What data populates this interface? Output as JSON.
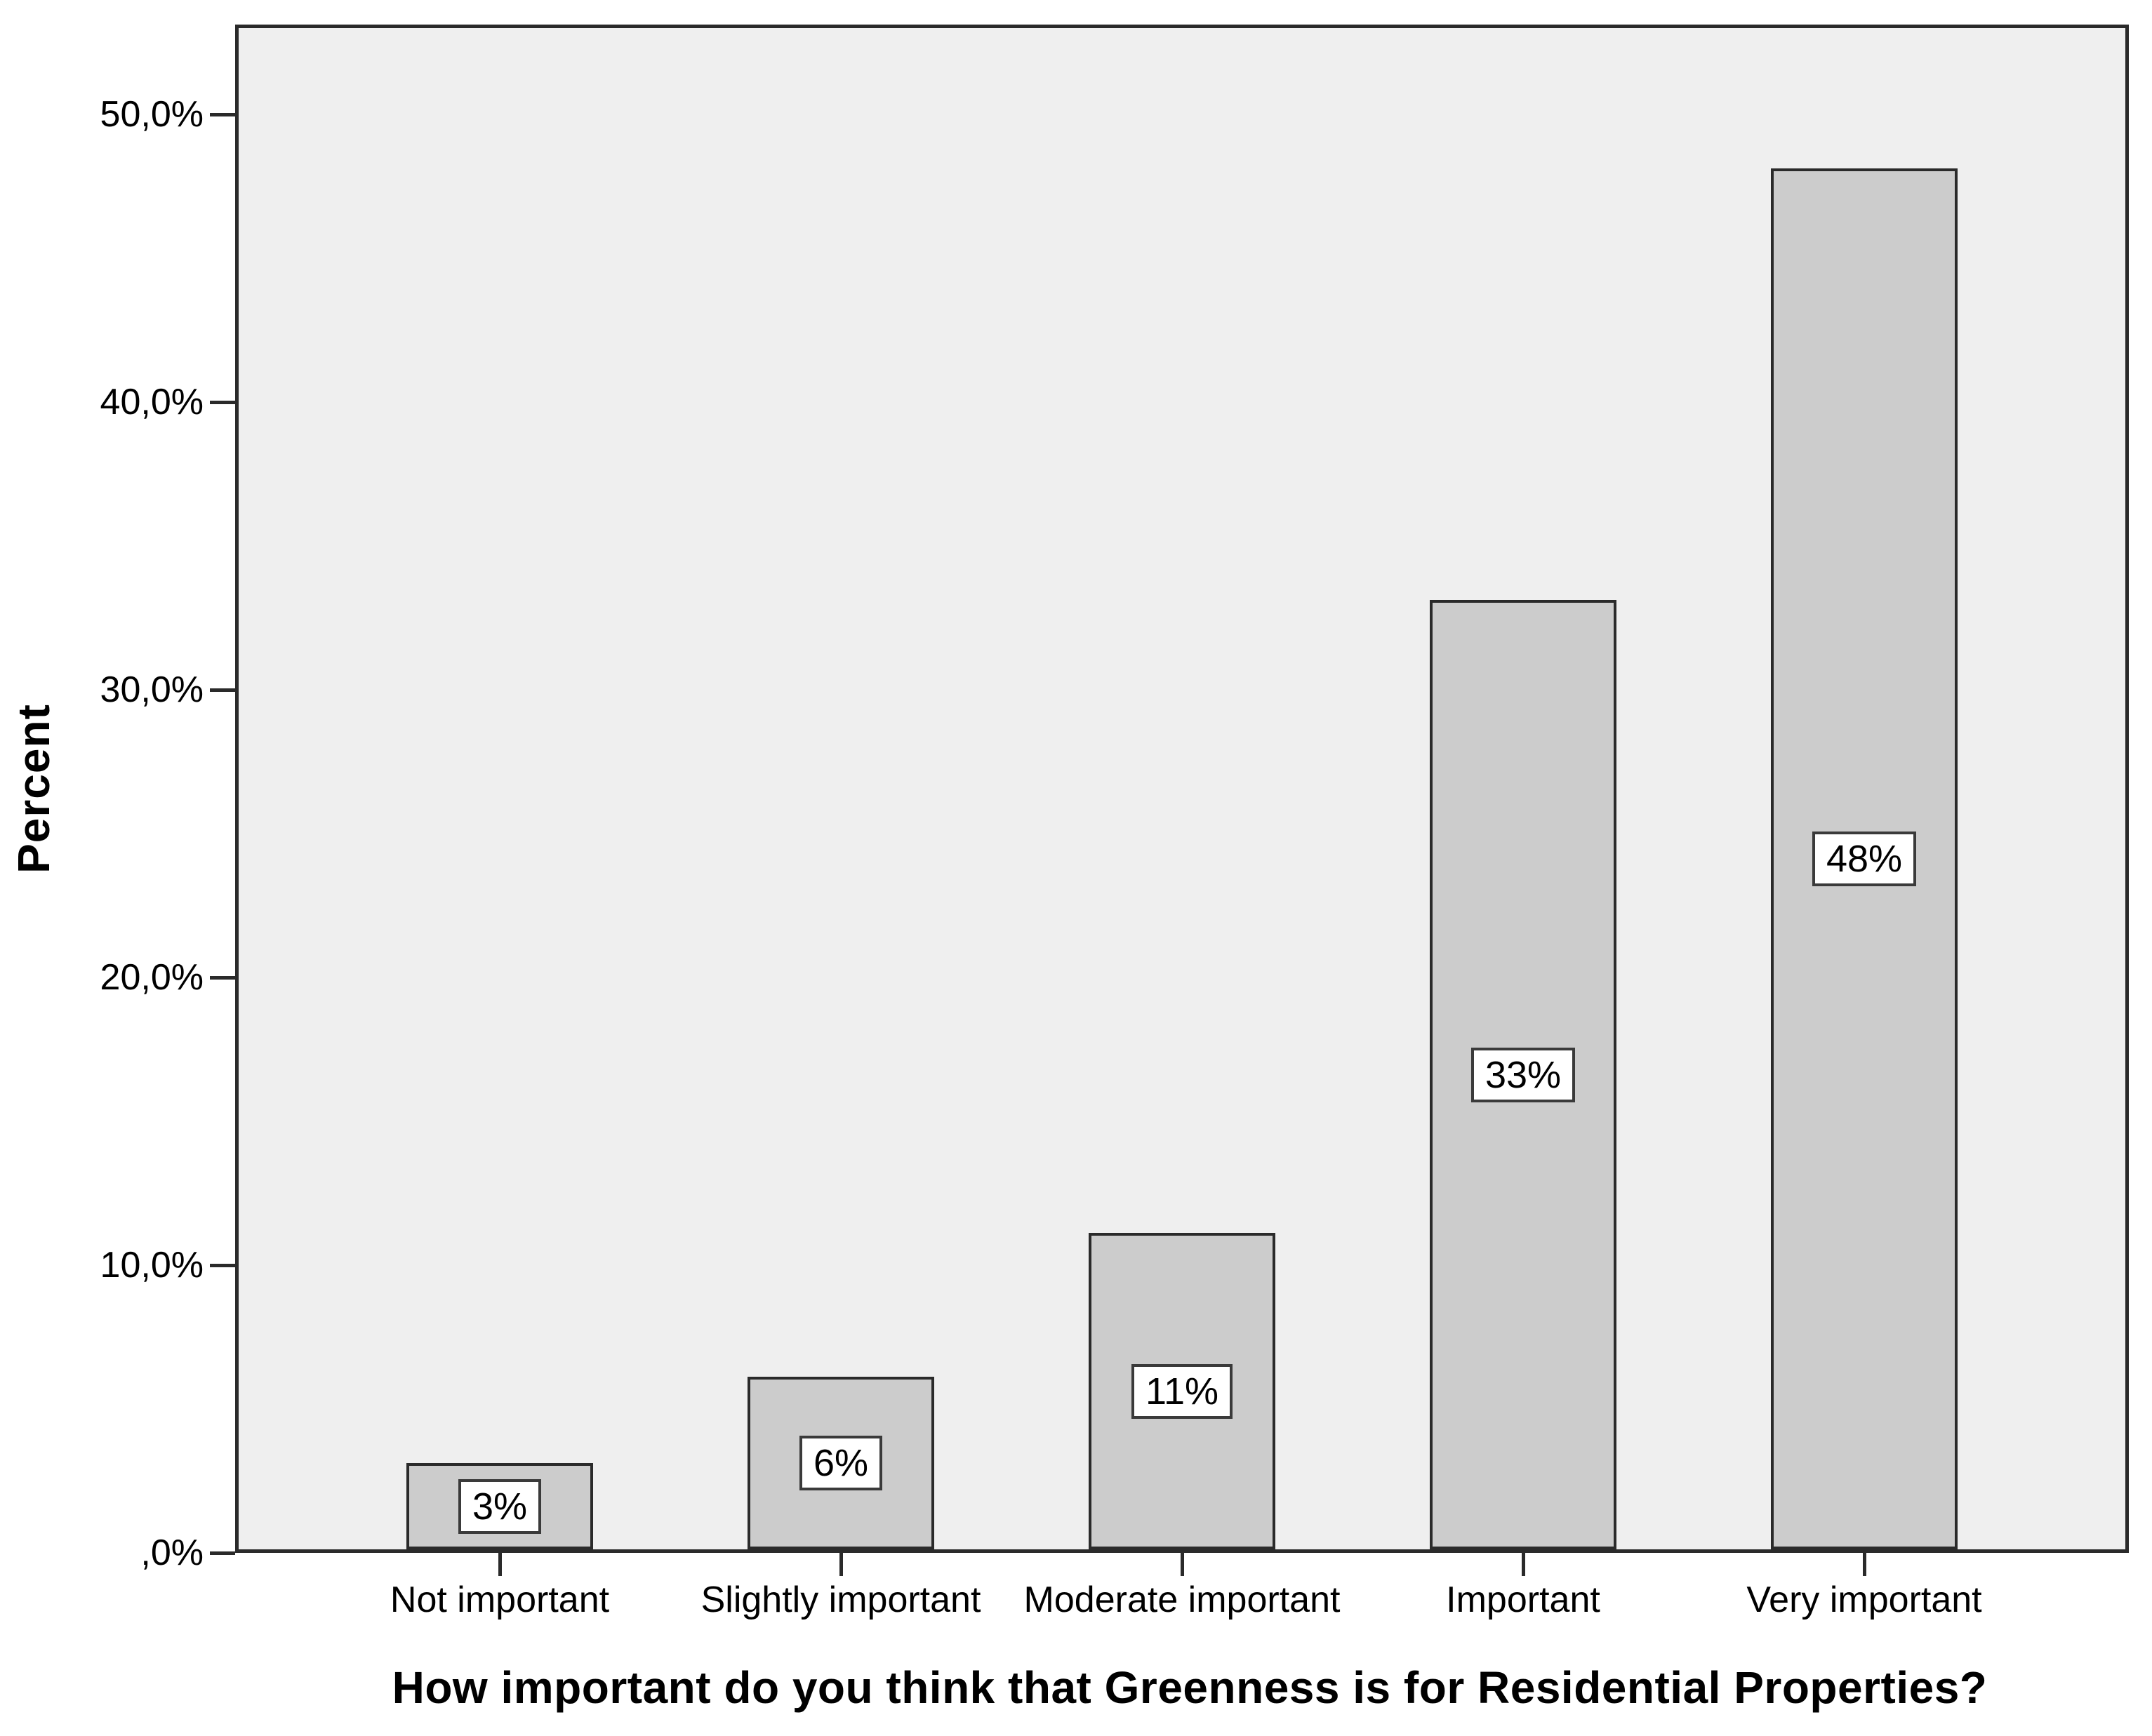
{
  "chart_data": {
    "type": "bar",
    "title": "How important do you think that Greenness is for Residential Properties?",
    "xlabel": "How important do you think that Greenness is for Residential Properties?",
    "ylabel": "Percent",
    "categories": [
      "Not important",
      "Slightly important",
      "Moderate important",
      "Important",
      "Very important"
    ],
    "values": [
      3,
      6,
      11,
      33,
      48
    ],
    "bar_value_labels": [
      "3%",
      "6%",
      "11%",
      "33%",
      "48%"
    ],
    "yticks": [
      {
        "value": 0,
        "label": ",0%"
      },
      {
        "value": 10,
        "label": "10,0%"
      },
      {
        "value": 20,
        "label": "20,0%"
      },
      {
        "value": 30,
        "label": "30,0%"
      },
      {
        "value": 40,
        "label": "40,0%"
      },
      {
        "value": 50,
        "label": "50,0%"
      }
    ],
    "ylim": [
      0,
      53
    ],
    "grid": false,
    "legend": "none"
  },
  "colors": {
    "bar_fill": "#cccccc",
    "bar_border": "#2a2a2a",
    "plot_background": "#efefef",
    "frame_border": "#2a2a2a",
    "label_box_background": "#ffffff",
    "label_box_border": "#3a3a3a",
    "page_background": "#ffffff",
    "text": "#000000"
  }
}
